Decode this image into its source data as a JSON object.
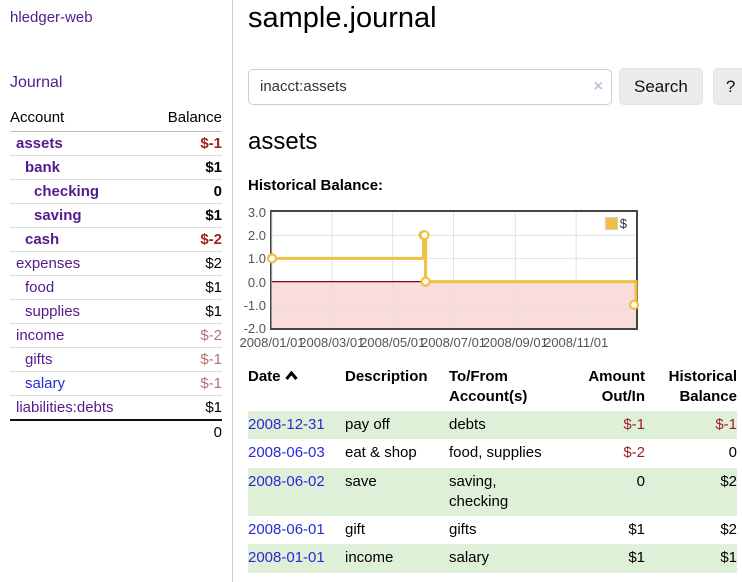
{
  "sidebar": {
    "app_title": "hledger-web",
    "journal_link": "Journal",
    "accounts_table": {
      "headers": {
        "account": "Account",
        "balance": "Balance"
      },
      "rows": [
        {
          "name": "assets",
          "balance": "$-1",
          "depth": 0,
          "bold": true,
          "unvisited": false
        },
        {
          "name": "bank",
          "balance": "$1",
          "depth": 1,
          "bold": true,
          "unvisited": false
        },
        {
          "name": "checking",
          "balance": "0",
          "depth": 2,
          "bold": true,
          "unvisited": false
        },
        {
          "name": "saving",
          "balance": "$1",
          "depth": 2,
          "bold": true,
          "unvisited": false
        },
        {
          "name": "cash",
          "balance": "$-2",
          "depth": 1,
          "bold": true,
          "unvisited": false
        },
        {
          "name": "expenses",
          "balance": "$2",
          "depth": 0,
          "bold": false,
          "unvisited": false
        },
        {
          "name": "food",
          "balance": "$1",
          "depth": 1,
          "bold": false,
          "unvisited": false
        },
        {
          "name": "supplies",
          "balance": "$1",
          "depth": 1,
          "bold": false,
          "unvisited": false
        },
        {
          "name": "income",
          "balance": "$-2",
          "depth": 0,
          "bold": false,
          "unvisited": false
        },
        {
          "name": "gifts",
          "balance": "$-1",
          "depth": 1,
          "bold": false,
          "unvisited": false
        },
        {
          "name": "salary",
          "balance": "$-1",
          "depth": 1,
          "bold": false,
          "unvisited": true
        },
        {
          "name": "liabilities:debts",
          "balance": "$1",
          "depth": 0,
          "bold": false,
          "unvisited": false
        }
      ],
      "total": "0"
    }
  },
  "header": {
    "title": "sample.journal"
  },
  "search": {
    "value": "inacct:assets",
    "clear_icon": "×",
    "button_label": "Search",
    "help_label": "?"
  },
  "account_page": {
    "title": "assets",
    "chart_caption": "Historical Balance:"
  },
  "chart_data": {
    "type": "line",
    "subtype": "step",
    "title": "Historical Balance",
    "series": [
      {
        "name": "$",
        "color": "#edc240"
      }
    ],
    "points": [
      {
        "date": "2008-01-01",
        "value": 1
      },
      {
        "date": "2008-06-01",
        "value": 2
      },
      {
        "date": "2008-06-02",
        "value": 2
      },
      {
        "date": "2008-06-03",
        "value": 0
      },
      {
        "date": "2008-12-31",
        "value": -1
      }
    ],
    "x_range": [
      "2008-01-01",
      "2008-12-31"
    ],
    "y_range": [
      -2,
      3
    ],
    "x_ticks": [
      {
        "date": "2008-01-01",
        "label": "2008/01/01"
      },
      {
        "date": "2008-03-01",
        "label": "2008/03/01"
      },
      {
        "date": "2008-05-01",
        "label": "2008/05/01"
      },
      {
        "date": "2008-07-01",
        "label": "2008/07/01"
      },
      {
        "date": "2008-09-01",
        "label": "2008/09/01"
      },
      {
        "date": "2008-11-01",
        "label": "2008/11/01"
      }
    ],
    "y_ticks": [
      {
        "value": 3,
        "label": "3.0"
      },
      {
        "value": 2,
        "label": "2.0"
      },
      {
        "value": 1,
        "label": "1.0"
      },
      {
        "value": 0,
        "label": "0.0"
      },
      {
        "value": -1,
        "label": "-1.0"
      },
      {
        "value": -2,
        "label": "-2.0"
      }
    ],
    "grid": true,
    "legend_position": "top-right",
    "negative_region_fill": "#fadcdc",
    "zero_line_color": "#8b0000"
  },
  "register": {
    "headers": {
      "date": "Date",
      "description": "Description",
      "accounts": "To/From Account(s)",
      "amount": "Amount Out/In",
      "balance": "Historical Balance"
    },
    "sort": {
      "column": "date",
      "direction": "asc"
    },
    "rows": [
      {
        "date": "2008-12-31",
        "description": "pay off",
        "accounts": "debts",
        "amount": "$-1",
        "balance": "$-1"
      },
      {
        "date": "2008-06-03",
        "description": "eat & shop",
        "accounts": "food, supplies",
        "amount": "$-2",
        "balance": "0"
      },
      {
        "date": "2008-06-02",
        "description": "save",
        "accounts": "saving, checking",
        "amount": "0",
        "balance": "$2"
      },
      {
        "date": "2008-06-01",
        "description": "gift",
        "accounts": "gifts",
        "amount": "$1",
        "balance": "$2"
      },
      {
        "date": "2008-01-01",
        "description": "income",
        "accounts": "salary",
        "amount": "$1",
        "balance": "$1"
      }
    ]
  },
  "colors": {
    "link_purple": "#551a8b",
    "link_blue": "#2a2ad4",
    "negative": "#9e1f24",
    "negative_muted": "#b57172",
    "row_stripe_green": "#dff0d8",
    "series_gold": "#edc240"
  }
}
